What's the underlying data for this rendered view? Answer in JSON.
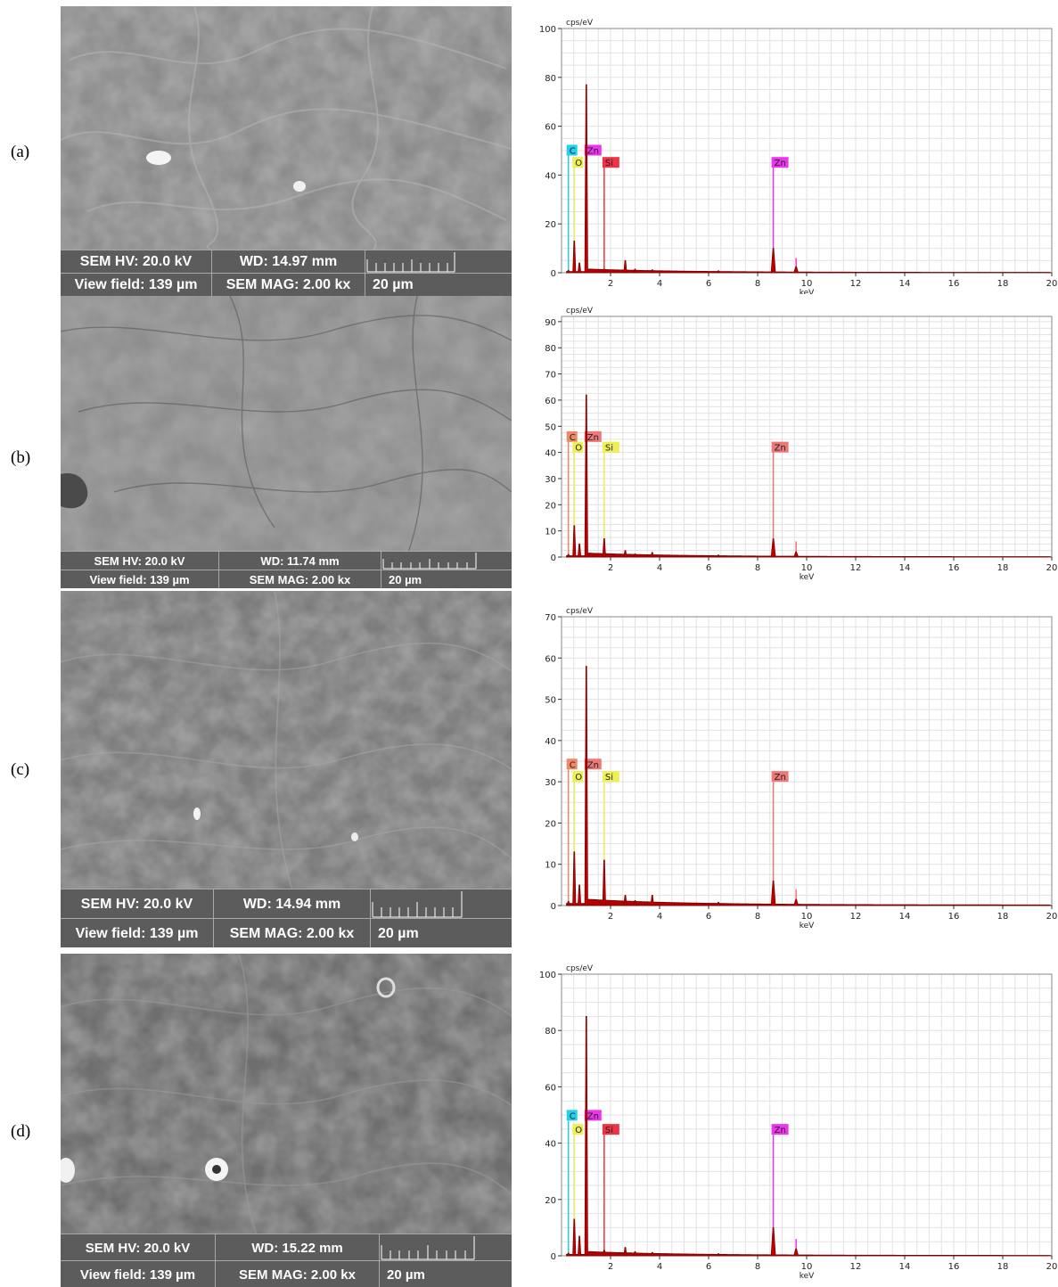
{
  "panels": [
    {
      "label": "(a)",
      "sem": {
        "hv": "SEM HV: 20.0 kV",
        "wd": "WD: 14.97 mm",
        "view_field": "View field: 139 µm",
        "mag": "SEM MAG: 2.00 kx",
        "scale": "20 µm"
      }
    },
    {
      "label": "(b)",
      "sem": {
        "hv": "SEM HV: 20.0 kV",
        "wd": "WD: 11.74 mm",
        "view_field": "View field: 139 µm",
        "mag": "SEM MAG: 2.00 kx",
        "scale": "20 µm"
      }
    },
    {
      "label": "(c)",
      "sem": {
        "hv": "SEM HV: 20.0 kV",
        "wd": "WD: 14.94 mm",
        "view_field": "View field: 139 µm",
        "mag": "SEM MAG: 2.00 kx",
        "scale": "20 µm"
      }
    },
    {
      "label": "(d)",
      "sem": {
        "hv": "SEM HV: 20.0 kV",
        "wd": "WD: 15.22 mm",
        "view_field": "View field: 139 µm",
        "mag": "SEM MAG: 2.00 kx",
        "scale": "20 µm"
      }
    }
  ],
  "chart_data": [
    {
      "type": "area",
      "ylabel": "cps/eV",
      "xlabel": "keV",
      "xlim": [
        0,
        20
      ],
      "ylim": [
        0,
        100
      ],
      "xticks": [
        2,
        4,
        6,
        8,
        10,
        12,
        14,
        16,
        18,
        20
      ],
      "yticks": [
        0,
        20,
        40,
        60,
        80,
        100
      ],
      "grid": true,
      "series": [
        {
          "x": [
            0.28,
            0.52,
            0.73,
            1.01,
            1.74,
            2.6,
            3.0,
            3.7,
            6.4,
            8.64,
            9.57
          ],
          "values": [
            1,
            13,
            4,
            77,
            1.5,
            5,
            1.5,
            1.2,
            0.8,
            10,
            2.5
          ]
        }
      ],
      "annotations": [
        {
          "text": "C",
          "x": 0.28,
          "level": 48,
          "color": "#22d0ee"
        },
        {
          "text": "O",
          "x": 0.52,
          "level": 43,
          "color": "#eeee55"
        },
        {
          "text": "Zn",
          "x": 1.01,
          "level": 48,
          "color": "#ee33ee"
        },
        {
          "text": "Si",
          "x": 1.74,
          "level": 43,
          "color": "#ee3344"
        },
        {
          "text": "Zn",
          "x": 8.64,
          "level": 43,
          "color": "#ee33ee"
        },
        {
          "text": "",
          "x": 9.57,
          "level": 6,
          "color": "#ee33ee"
        }
      ]
    },
    {
      "type": "area",
      "ylabel": "cps/eV",
      "xlabel": "keV",
      "xlim": [
        0,
        20
      ],
      "ylim": [
        0,
        92
      ],
      "xticks": [
        2,
        4,
        6,
        8,
        10,
        12,
        14,
        16,
        18,
        20
      ],
      "yticks": [
        0,
        10,
        20,
        30,
        40,
        50,
        60,
        70,
        80,
        90
      ],
      "grid": true,
      "series": [
        {
          "x": [
            0.28,
            0.52,
            0.73,
            1.01,
            1.74,
            2.6,
            3.0,
            3.7,
            6.4,
            8.64,
            9.57
          ],
          "values": [
            1,
            12,
            5,
            62,
            7,
            2.5,
            1.2,
            1.8,
            0.8,
            7,
            2
          ]
        }
      ],
      "annotations": [
        {
          "text": "C",
          "x": 0.28,
          "level": 44,
          "color": "#ee8866"
        },
        {
          "text": "O",
          "x": 0.52,
          "level": 40,
          "color": "#eeee55"
        },
        {
          "text": "Zn",
          "x": 1.01,
          "level": 44,
          "color": "#ee7777"
        },
        {
          "text": "Si",
          "x": 1.74,
          "level": 40,
          "color": "#eeee55"
        },
        {
          "text": "Zn",
          "x": 8.64,
          "level": 40,
          "color": "#ee7777"
        },
        {
          "text": "",
          "x": 9.57,
          "level": 6,
          "color": "#ee7777"
        }
      ]
    },
    {
      "type": "area",
      "ylabel": "cps/eV",
      "xlabel": "keV",
      "xlim": [
        0,
        20
      ],
      "ylim": [
        0,
        70
      ],
      "xticks": [
        2,
        4,
        6,
        8,
        10,
        12,
        14,
        16,
        18,
        20
      ],
      "yticks": [
        0,
        10,
        20,
        30,
        40,
        50,
        60,
        70
      ],
      "grid": true,
      "series": [
        {
          "x": [
            0.28,
            0.52,
            0.73,
            1.01,
            1.74,
            2.6,
            3.0,
            3.7,
            6.4,
            8.64,
            9.57
          ],
          "values": [
            1,
            13,
            5,
            58,
            11,
            2.5,
            1.2,
            2.5,
            0.8,
            6,
            1.5
          ]
        }
      ],
      "annotations": [
        {
          "text": "C",
          "x": 0.28,
          "level": 33,
          "color": "#ee8866"
        },
        {
          "text": "O",
          "x": 0.52,
          "level": 30,
          "color": "#eeee55"
        },
        {
          "text": "Zn",
          "x": 1.01,
          "level": 33,
          "color": "#ee7777"
        },
        {
          "text": "Si",
          "x": 1.74,
          "level": 30,
          "color": "#eeee55"
        },
        {
          "text": "Zn",
          "x": 8.64,
          "level": 30,
          "color": "#ee7777"
        },
        {
          "text": "",
          "x": 9.57,
          "level": 4,
          "color": "#ee7777"
        }
      ]
    },
    {
      "type": "area",
      "ylabel": "cps/eV",
      "xlabel": "keV",
      "xlim": [
        0,
        20
      ],
      "ylim": [
        0,
        100
      ],
      "xticks": [
        2,
        4,
        6,
        8,
        10,
        12,
        14,
        16,
        18,
        20
      ],
      "yticks": [
        0,
        20,
        40,
        60,
        80,
        100
      ],
      "grid": true,
      "series": [
        {
          "x": [
            0.28,
            0.52,
            0.73,
            1.01,
            1.74,
            2.6,
            3.0,
            3.7,
            6.4,
            8.64,
            9.57
          ],
          "values": [
            1,
            13,
            7,
            85,
            2,
            3,
            1.5,
            1.2,
            0.8,
            10,
            2.5
          ]
        }
      ],
      "annotations": [
        {
          "text": "C",
          "x": 0.28,
          "level": 48,
          "color": "#22d0ee"
        },
        {
          "text": "O",
          "x": 0.52,
          "level": 43,
          "color": "#eeee55"
        },
        {
          "text": "Zn",
          "x": 1.01,
          "level": 48,
          "color": "#ee33ee"
        },
        {
          "text": "Si",
          "x": 1.74,
          "level": 43,
          "color": "#ee3344"
        },
        {
          "text": "Zn",
          "x": 8.64,
          "level": 43,
          "color": "#ee33ee"
        },
        {
          "text": "",
          "x": 9.57,
          "level": 6,
          "color": "#ee33ee"
        }
      ]
    }
  ]
}
